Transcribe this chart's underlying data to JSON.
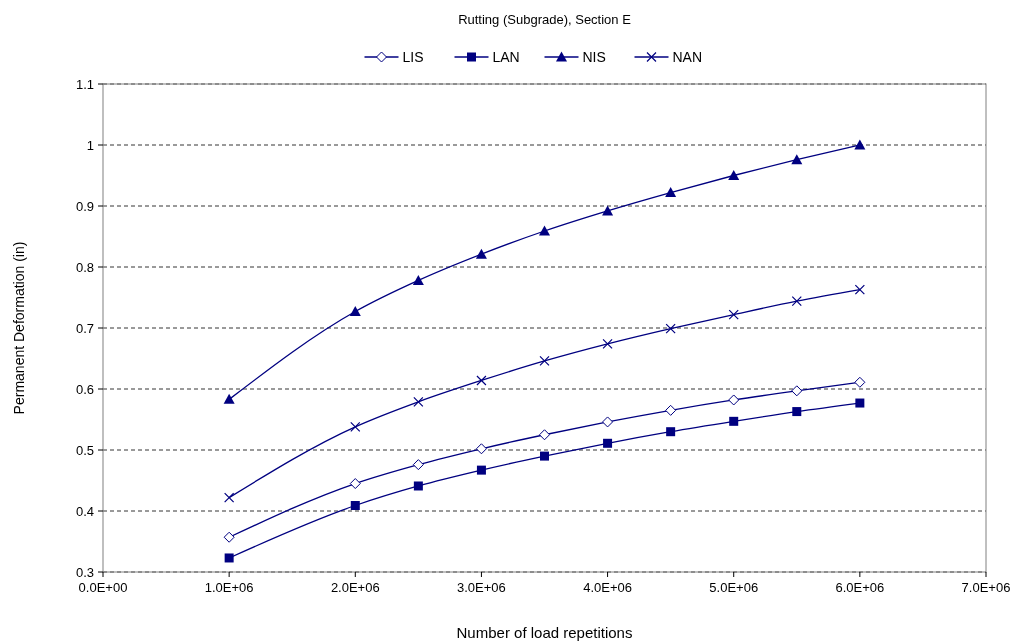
{
  "chart_data": {
    "type": "line",
    "title": "Rutting (Subgrade), Section E",
    "xlabel": "Number of load repetitions",
    "ylabel": "Permanent Deformation (in)",
    "x": [
      1000000,
      2000000,
      2500000,
      3000000,
      3500000,
      4000000,
      4500000,
      5000000,
      5500000,
      6000000
    ],
    "series": [
      {
        "name": "LIS",
        "color": "#000080",
        "marker": "diamond",
        "values": [
          0.357,
          0.445,
          0.476,
          0.502,
          0.525,
          0.546,
          0.565,
          0.582,
          0.597,
          0.611
        ]
      },
      {
        "name": "LAN",
        "color": "#000080",
        "marker": "square",
        "values": [
          0.323,
          0.409,
          0.441,
          0.467,
          0.49,
          0.511,
          0.53,
          0.547,
          0.563,
          0.577
        ]
      },
      {
        "name": "NIS",
        "color": "#000080",
        "marker": "triangle",
        "values": [
          0.583,
          0.727,
          0.778,
          0.821,
          0.859,
          0.892,
          0.922,
          0.95,
          0.976,
          1.0
        ]
      },
      {
        "name": "NAN",
        "color": "#000080",
        "marker": "cross",
        "values": [
          0.422,
          0.538,
          0.579,
          0.614,
          0.646,
          0.674,
          0.699,
          0.722,
          0.744,
          0.763
        ]
      }
    ],
    "xlim": [
      0,
      7000000
    ],
    "xticks": [
      {
        "value": 0,
        "label": "0.0E+00"
      },
      {
        "value": 1000000,
        "label": "1.0E+06"
      },
      {
        "value": 2000000,
        "label": "2.0E+06"
      },
      {
        "value": 3000000,
        "label": "3.0E+06"
      },
      {
        "value": 4000000,
        "label": "4.0E+06"
      },
      {
        "value": 5000000,
        "label": "5.0E+06"
      },
      {
        "value": 6000000,
        "label": "6.0E+06"
      },
      {
        "value": 7000000,
        "label": "7.0E+06"
      }
    ],
    "ylim": [
      0.3,
      1.1
    ],
    "yticks": [
      0.3,
      0.4,
      0.5,
      0.6,
      0.7,
      0.8,
      0.9,
      1,
      1.1
    ],
    "grid": "y",
    "legend": "top",
    "line_style": "solid"
  }
}
